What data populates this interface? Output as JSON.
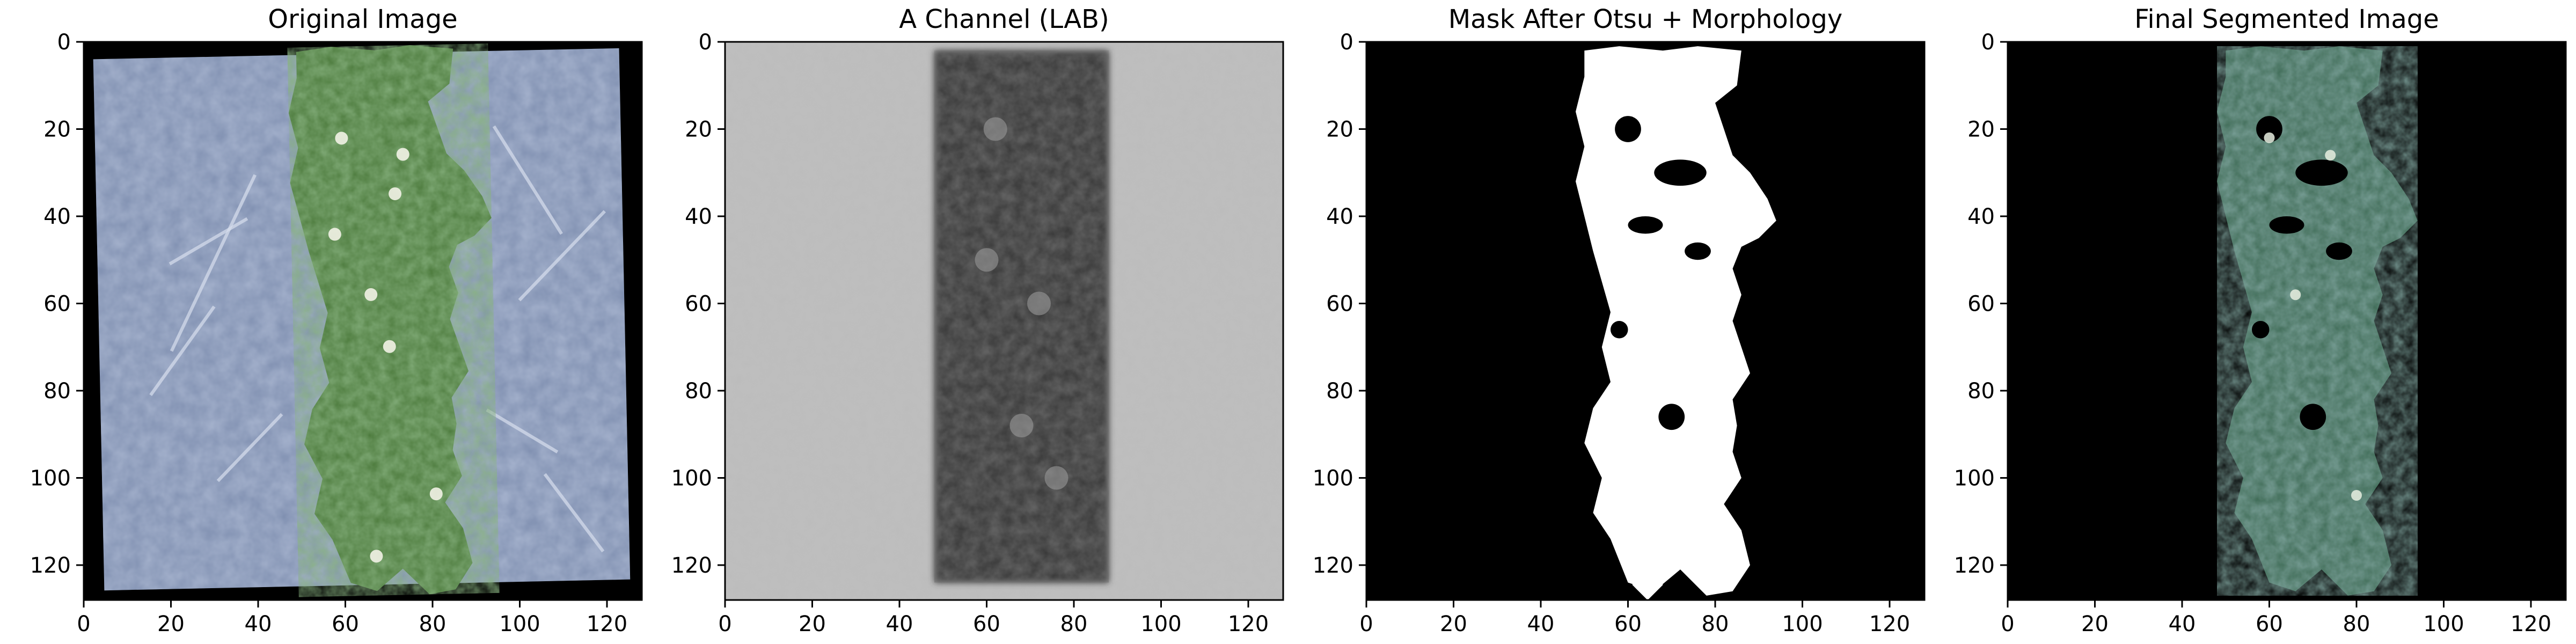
{
  "panels": [
    {
      "id": "original",
      "title": "Original Image",
      "kind": "photo"
    },
    {
      "id": "a-channel",
      "title": "A Channel (LAB)",
      "kind": "grayscale"
    },
    {
      "id": "mask",
      "title": "Mask After Otsu + Morphology",
      "kind": "mask"
    },
    {
      "id": "segmented",
      "title": "Final Segmented Image",
      "kind": "segmented"
    }
  ],
  "axes": {
    "x_ticks": [
      "0",
      "20",
      "40",
      "60",
      "80",
      "100",
      "120"
    ],
    "y_ticks": [
      "0",
      "20",
      "40",
      "60",
      "80",
      "100",
      "120"
    ],
    "x_tick_values": [
      0,
      20,
      40,
      60,
      80,
      100,
      120
    ],
    "y_tick_values": [
      0,
      20,
      40,
      60,
      80,
      100,
      120
    ],
    "range": [
      0,
      128
    ]
  },
  "colors": {
    "soil": "#7f8fb0",
    "plant": "#4c7a3c",
    "gray_bg": "#bcbcbc",
    "gray_dark": "#3a3a3a",
    "mask_fg": "#ffffff",
    "mask_bg": "#000000"
  }
}
